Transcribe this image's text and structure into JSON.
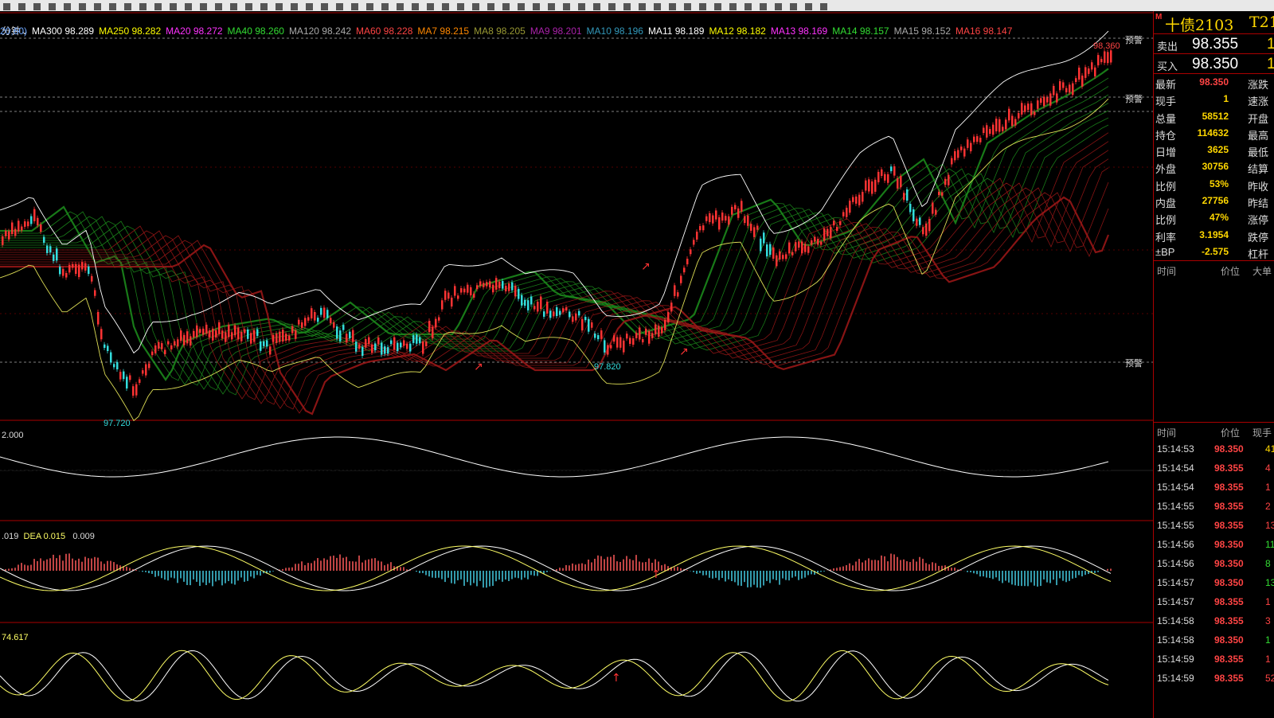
{
  "period_tab": "分钟",
  "ma_legend": [
    {
      "label": "20,60)",
      "color": "#6fa8ff"
    },
    {
      "label": "MA300 98.289",
      "color": "#ffffff"
    },
    {
      "label": "MA250 98.282",
      "color": "#ffff00"
    },
    {
      "label": "MA20 98.272",
      "color": "#ff33ff"
    },
    {
      "label": "MA40 98.260",
      "color": "#33dd33"
    },
    {
      "label": "MA120 98.242",
      "color": "#aaaaaa"
    },
    {
      "label": "MA60 98.228",
      "color": "#ff4444"
    },
    {
      "label": "MA7 98.215",
      "color": "#ff8800"
    },
    {
      "label": "MA8 98.205",
      "color": "#999933"
    },
    {
      "label": "MA9 98.201",
      "color": "#aa22aa"
    },
    {
      "label": "MA10 98.196",
      "color": "#3399bb"
    },
    {
      "label": "MA11 98.189",
      "color": "#ffffff"
    },
    {
      "label": "MA12 98.182",
      "color": "#ffff00"
    },
    {
      "label": "MA13 98.169",
      "color": "#ff33ff"
    },
    {
      "label": "MA14 98.157",
      "color": "#33dd33"
    },
    {
      "label": "MA15 98.152",
      "color": "#aaaaaa"
    },
    {
      "label": "MA16 98.147",
      "color": "#ff4444"
    }
  ],
  "alerts": [
    "预警",
    "预警",
    "预警"
  ],
  "price_labels": {
    "high": "98.360",
    "low1": "97.720",
    "low2": "97.820"
  },
  "vol_label": "2.000",
  "macd_label": {
    "dif": ".019",
    "dea": "DEA 0.015",
    "macd": "0.009"
  },
  "kdj_label": "74.617",
  "side": {
    "marker": "M",
    "name": "十债2103",
    "code": "T21",
    "sell_label": "卖出",
    "sell_price": "98.355",
    "sell_qty": "1",
    "buy_label": "买入",
    "buy_price": "98.350",
    "buy_qty": "1",
    "stats": [
      {
        "l": "最新",
        "v": "98.350",
        "r": "涨跌",
        "color": "#ff4444"
      },
      {
        "l": "现手",
        "v": "1",
        "r": "速涨",
        "color": "#ffd700"
      },
      {
        "l": "总量",
        "v": "58512",
        "r": "开盘",
        "color": "#ffd700"
      },
      {
        "l": "持仓",
        "v": "114632",
        "r": "最高",
        "color": "#ffd700"
      },
      {
        "l": "日增",
        "v": "3625",
        "r": "最低",
        "color": "#ffd700"
      },
      {
        "l": "外盘",
        "v": "30756",
        "r": "结算",
        "color": "#ffd700"
      },
      {
        "l": "比例",
        "v": "53%",
        "r": "昨收",
        "color": "#ffd700"
      },
      {
        "l": "内盘",
        "v": "27756",
        "r": "昨结",
        "color": "#ffd700"
      },
      {
        "l": "比例",
        "v": "47%",
        "r": "涨停",
        "color": "#ffd700"
      },
      {
        "l": "利率",
        "v": "3.1954",
        "r": "跌停",
        "color": "#ffd700"
      },
      {
        "l": "±BP",
        "v": "-2.575",
        "r": "杠杆",
        "color": "#ffd700"
      }
    ],
    "list1_head": {
      "time": "时间",
      "price": "价位",
      "qty": "大单"
    },
    "list2_head": {
      "time": "时间",
      "price": "价位",
      "qty": "现手"
    },
    "ticks": [
      {
        "t": "15:14:53",
        "p": "98.350",
        "v": "41",
        "c": "#ffd700"
      },
      {
        "t": "15:14:54",
        "p": "98.355",
        "v": "4",
        "c": "#ff4444"
      },
      {
        "t": "15:14:54",
        "p": "98.355",
        "v": "1",
        "c": "#ff4444"
      },
      {
        "t": "15:14:55",
        "p": "98.355",
        "v": "2",
        "c": "#ff4444"
      },
      {
        "t": "15:14:55",
        "p": "98.355",
        "v": "13",
        "c": "#ff4444"
      },
      {
        "t": "15:14:56",
        "p": "98.350",
        "v": "11",
        "c": "#33dd33"
      },
      {
        "t": "15:14:56",
        "p": "98.350",
        "v": "8",
        "c": "#33dd33"
      },
      {
        "t": "15:14:57",
        "p": "98.350",
        "v": "13",
        "c": "#33dd33"
      },
      {
        "t": "15:14:57",
        "p": "98.355",
        "v": "1",
        "c": "#ff4444"
      },
      {
        "t": "15:14:58",
        "p": "98.355",
        "v": "3",
        "c": "#ff4444"
      },
      {
        "t": "15:14:58",
        "p": "98.350",
        "v": "1",
        "c": "#33dd33"
      },
      {
        "t": "15:14:59",
        "p": "98.355",
        "v": "1",
        "c": "#ff4444"
      },
      {
        "t": "15:14:59",
        "p": "98.355",
        "v": "52",
        "c": "#ff4444"
      }
    ]
  }
}
